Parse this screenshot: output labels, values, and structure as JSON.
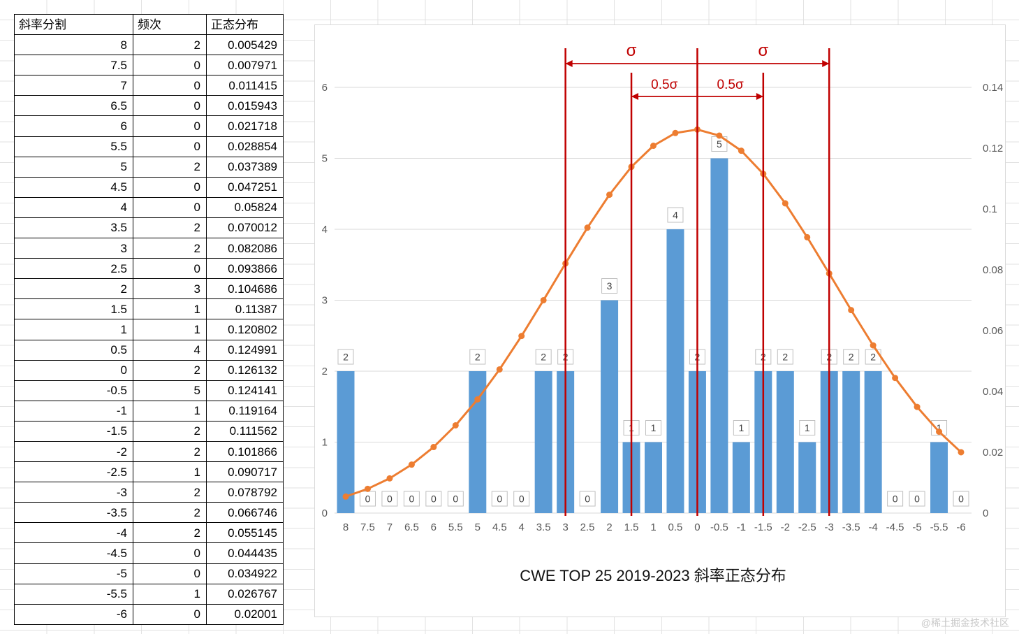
{
  "table": {
    "headers": [
      "斜率分割",
      "频次",
      "正态分布"
    ],
    "rows": [
      [
        "8",
        "2",
        "0.005429"
      ],
      [
        "7.5",
        "0",
        "0.007971"
      ],
      [
        "7",
        "0",
        "0.011415"
      ],
      [
        "6.5",
        "0",
        "0.015943"
      ],
      [
        "6",
        "0",
        "0.021718"
      ],
      [
        "5.5",
        "0",
        "0.028854"
      ],
      [
        "5",
        "2",
        "0.037389"
      ],
      [
        "4.5",
        "0",
        "0.047251"
      ],
      [
        "4",
        "0",
        "0.05824"
      ],
      [
        "3.5",
        "2",
        "0.070012"
      ],
      [
        "3",
        "2",
        "0.082086"
      ],
      [
        "2.5",
        "0",
        "0.093866"
      ],
      [
        "2",
        "3",
        "0.104686"
      ],
      [
        "1.5",
        "1",
        "0.11387"
      ],
      [
        "1",
        "1",
        "0.120802"
      ],
      [
        "0.5",
        "4",
        "0.124991"
      ],
      [
        "0",
        "2",
        "0.126132"
      ],
      [
        "-0.5",
        "5",
        "0.124141"
      ],
      [
        "-1",
        "1",
        "0.119164"
      ],
      [
        "-1.5",
        "2",
        "0.111562"
      ],
      [
        "-2",
        "2",
        "0.101866"
      ],
      [
        "-2.5",
        "1",
        "0.090717"
      ],
      [
        "-3",
        "2",
        "0.078792"
      ],
      [
        "-3.5",
        "2",
        "0.066746"
      ],
      [
        "-4",
        "2",
        "0.055145"
      ],
      [
        "-4.5",
        "0",
        "0.044435"
      ],
      [
        "-5",
        "0",
        "0.034922"
      ],
      [
        "-5.5",
        "1",
        "0.026767"
      ],
      [
        "-6",
        "0",
        "0.02001"
      ]
    ]
  },
  "chart_data": {
    "type": "combo",
    "title": "CWE TOP 25 2019-2023 斜率正态分布",
    "categories": [
      "8",
      "7.5",
      "7",
      "6.5",
      "6",
      "5.5",
      "5",
      "4.5",
      "4",
      "3.5",
      "3",
      "2.5",
      "2",
      "1.5",
      "1",
      "0.5",
      "0",
      "-0.5",
      "-1",
      "-1.5",
      "-2",
      "-2.5",
      "-3",
      "-3.5",
      "-4",
      "-4.5",
      "-5",
      "-5.5",
      "-6"
    ],
    "series": [
      {
        "name": "频次",
        "type": "bar",
        "axis": "left",
        "color": "#5B9BD5",
        "values": [
          2,
          0,
          0,
          0,
          0,
          0,
          2,
          0,
          0,
          2,
          2,
          0,
          3,
          1,
          1,
          4,
          2,
          5,
          1,
          2,
          2,
          1,
          2,
          2,
          2,
          0,
          0,
          1,
          0
        ]
      },
      {
        "name": "正态分布",
        "type": "line",
        "axis": "right",
        "color": "#ED7D31",
        "values": [
          0.005429,
          0.007971,
          0.011415,
          0.015943,
          0.021718,
          0.028854,
          0.037389,
          0.047251,
          0.05824,
          0.070012,
          0.082086,
          0.093866,
          0.104686,
          0.11387,
          0.120802,
          0.124991,
          0.126132,
          0.124141,
          0.119164,
          0.111562,
          0.101866,
          0.090717,
          0.078792,
          0.066746,
          0.055145,
          0.044435,
          0.034922,
          0.026767,
          0.02001
        ]
      }
    ],
    "left_axis": {
      "min": 0,
      "max": 6,
      "ticks": [
        "0",
        "1",
        "2",
        "3",
        "4",
        "5",
        "6"
      ]
    },
    "right_axis": {
      "min": 0,
      "max": 0.14,
      "ticks": [
        "0",
        "0.02",
        "0.04",
        "0.06",
        "0.08",
        "0.1",
        "0.12",
        "0.14"
      ]
    },
    "grid": true,
    "legend": "none",
    "data_labels": true,
    "annotations": {
      "color": "#C00000",
      "vlines": [
        "3",
        "1.5",
        "0",
        "-1.5",
        "-3"
      ],
      "arrows": [
        {
          "label": "σ",
          "from": "0",
          "to": "3"
        },
        {
          "label": "σ",
          "from": "0",
          "to": "-3"
        },
        {
          "label": "0.5σ",
          "from": "0",
          "to": "1.5"
        },
        {
          "label": "0.5σ",
          "from": "0",
          "to": "-1.5"
        }
      ]
    }
  },
  "watermark": "@稀土掘金技术社区"
}
